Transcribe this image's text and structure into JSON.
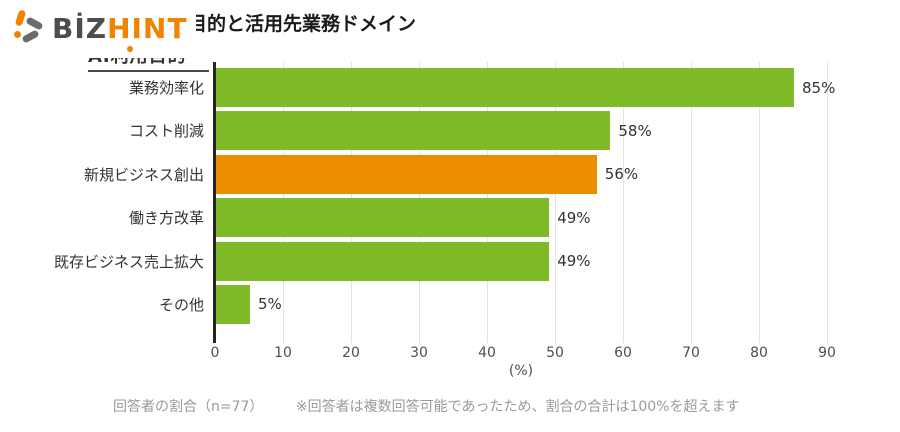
{
  "logo": {
    "biz": "BİZ",
    "hint": "HINT"
  },
  "title": "目的と活用先業務ドメイン",
  "subheading": "AI利用目的",
  "chart_data": {
    "type": "bar",
    "orientation": "horizontal",
    "title": "AI利用目的と活用先業務ドメイン",
    "categories": [
      "業務効率化",
      "コスト削減",
      "新規ビジネス創出",
      "働き方改革",
      "既存ビジネス売上拡大",
      "その他"
    ],
    "values": [
      85,
      58,
      56,
      49,
      49,
      5
    ],
    "value_labels": [
      "85%",
      "58%",
      "56%",
      "49%",
      "49%",
      "5%"
    ],
    "highlight_index": 2,
    "xlabel": "(%)",
    "xlim": [
      0,
      90
    ],
    "xticks": [
      0,
      10,
      20,
      30,
      40,
      50,
      60,
      70,
      80,
      90
    ],
    "grid": true,
    "legend": "none"
  },
  "colors": {
    "bar_green": "#7fba28",
    "bar_orange": "#ec8d00",
    "axis_line": "#262626",
    "gridline": "#e3e3e3",
    "logo_gray": "#4d4d4d",
    "logo_orange": "#f08300"
  },
  "footnote": {
    "left": "回答者の割合（n=77）",
    "note": "※回答者は複数回答可能であったため、割合の合計は100%を超えます"
  }
}
